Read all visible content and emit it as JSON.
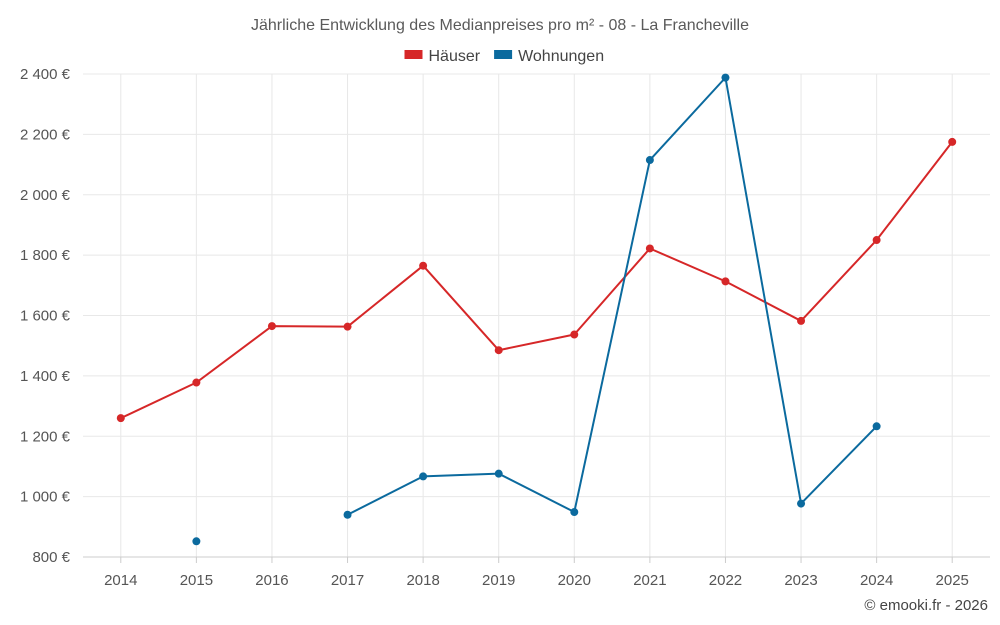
{
  "chart_data": {
    "type": "line",
    "title": "Jährliche Entwicklung des Medianpreises pro m² - 08 - La Francheville",
    "categories": [
      "2014",
      "2015",
      "2016",
      "2017",
      "2018",
      "2019",
      "2020",
      "2021",
      "2022",
      "2023",
      "2024",
      "2025"
    ],
    "y_ticks": [
      800,
      1000,
      1200,
      1400,
      1600,
      1800,
      2000,
      2200,
      2400
    ],
    "y_tick_labels": [
      "800 €",
      "1 000 €",
      "1 200 €",
      "1 400 €",
      "1 600 €",
      "1 800 €",
      "2 000 €",
      "2 200 €",
      "2 400 €"
    ],
    "ylim": [
      800,
      2400
    ],
    "grid": true,
    "legend_position": "top-center",
    "series": [
      {
        "name": "Häuser",
        "color": "#d62728",
        "values": [
          1260,
          1378,
          1565,
          1563,
          1765,
          1485,
          1537,
          1822,
          1713,
          1582,
          1850,
          2175
        ]
      },
      {
        "name": "Wohnungen",
        "color": "#0b6a9e",
        "values": [
          null,
          852,
          null,
          940,
          1067,
          1076,
          949,
          2115,
          2388,
          977,
          1233,
          null
        ]
      }
    ]
  },
  "credit": "© emooki.fr - 2026"
}
